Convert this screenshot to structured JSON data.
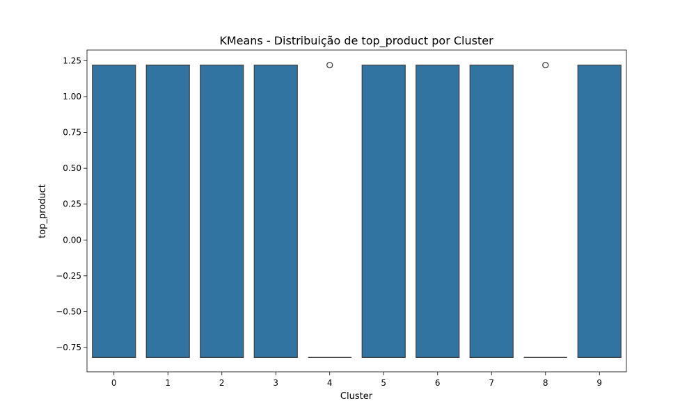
{
  "chart_data": {
    "type": "box",
    "title": "KMeans - Distribuição de top_product por Cluster",
    "xlabel": "Cluster",
    "ylabel": "top_product",
    "categories": [
      "0",
      "1",
      "2",
      "3",
      "4",
      "5",
      "6",
      "7",
      "8",
      "9"
    ],
    "ylim": [
      -0.92,
      1.325
    ],
    "yticks": [
      -0.75,
      -0.5,
      -0.25,
      0.0,
      0.25,
      0.5,
      0.75,
      1.0,
      1.25
    ],
    "ytick_labels": [
      "−0.75",
      "−0.50",
      "−0.25",
      "0.00",
      "0.25",
      "0.50",
      "0.75",
      "1.00",
      "1.25"
    ],
    "boxes": [
      {
        "category": "0",
        "q1": -0.82,
        "median": -0.82,
        "q3": 1.22,
        "whisker_low": -0.82,
        "whisker_high": 1.22,
        "outliers": []
      },
      {
        "category": "1",
        "q1": -0.82,
        "median": 1.22,
        "q3": 1.22,
        "whisker_low": -0.82,
        "whisker_high": 1.22,
        "outliers": []
      },
      {
        "category": "2",
        "q1": -0.82,
        "median": -0.82,
        "q3": 1.22,
        "whisker_low": -0.82,
        "whisker_high": 1.22,
        "outliers": []
      },
      {
        "category": "3",
        "q1": -0.82,
        "median": -0.82,
        "q3": 1.22,
        "whisker_low": -0.82,
        "whisker_high": 1.22,
        "outliers": []
      },
      {
        "category": "4",
        "q1": -0.82,
        "median": -0.82,
        "q3": -0.82,
        "whisker_low": -0.82,
        "whisker_high": -0.82,
        "outliers": [
          1.22
        ]
      },
      {
        "category": "5",
        "q1": -0.82,
        "median": -0.82,
        "q3": 1.22,
        "whisker_low": -0.82,
        "whisker_high": 1.22,
        "outliers": []
      },
      {
        "category": "6",
        "q1": -0.82,
        "median": -0.82,
        "q3": 1.22,
        "whisker_low": -0.82,
        "whisker_high": 1.22,
        "outliers": []
      },
      {
        "category": "7",
        "q1": -0.82,
        "median": -0.82,
        "q3": 1.22,
        "whisker_low": -0.82,
        "whisker_high": 1.22,
        "outliers": []
      },
      {
        "category": "8",
        "q1": -0.82,
        "median": -0.82,
        "q3": -0.82,
        "whisker_low": -0.82,
        "whisker_high": -0.82,
        "outliers": [
          1.22
        ]
      },
      {
        "category": "9",
        "q1": -0.82,
        "median": -0.82,
        "q3": 1.22,
        "whisker_low": -0.82,
        "whisker_high": 1.22,
        "outliers": []
      }
    ],
    "grid": false,
    "legend": "none",
    "box_color": "#3274a1",
    "edge_color": "#3f3f3f"
  }
}
